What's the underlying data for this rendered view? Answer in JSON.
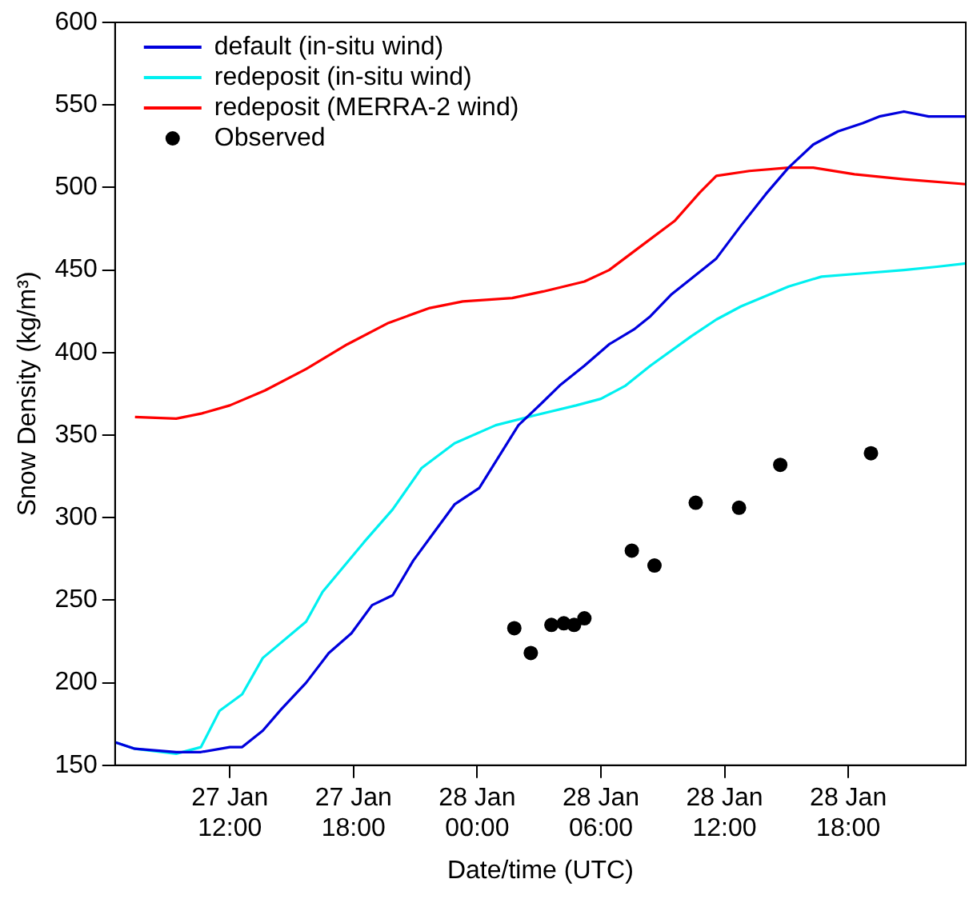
{
  "chart_data": {
    "type": "line",
    "xlabel": "Date/time (UTC)",
    "ylabel": "Snow Density (kg/m³)",
    "xlim": [
      "--01-27T06:26",
      "--01-28T23:42"
    ],
    "ylim": [
      150,
      600
    ],
    "xticks": [
      {
        "value": "--01-27T12:00",
        "label": "27 Jan 12:00"
      },
      {
        "value": "--01-27T18:00",
        "label": "27 Jan 18:00"
      },
      {
        "value": "--01-28T00:00",
        "label": "28 Jan 00:00"
      },
      {
        "value": "--01-28T06:00",
        "label": "28 Jan 06:00"
      },
      {
        "value": "--01-28T12:00",
        "label": "28 Jan 12:00"
      },
      {
        "value": "--01-28T18:00",
        "label": "28 Jan 18:00"
      }
    ],
    "yticks": [
      150,
      200,
      250,
      300,
      350,
      400,
      450,
      500,
      550,
      600
    ],
    "grid": false,
    "legend": "top left",
    "series": [
      {
        "name": "default (in-situ wind)",
        "type": "line",
        "color": "#0000dd",
        "marker": "none",
        "x": [
          "--01-27T06:26",
          "--01-27T07:24",
          "--01-27T09:24",
          "--01-27T10:36",
          "--01-27T12:00",
          "--01-27T12:36",
          "--01-27T13:36",
          "--01-27T14:30",
          "--01-27T15:42",
          "--01-27T16:48",
          "--01-27T17:54",
          "--01-27T18:54",
          "--01-27T19:54",
          "--01-27T20:54",
          "--01-27T21:54",
          "--01-27T22:54",
          "--01-28T00:06",
          "--01-28T01:00",
          "--01-28T02:00",
          "--01-28T03:06",
          "--01-28T04:00",
          "--01-28T05:12",
          "--01-28T06:24",
          "--01-28T07:36",
          "--01-28T08:24",
          "--01-28T09:24",
          "--01-28T10:24",
          "--01-28T11:36",
          "--01-28T12:48",
          "--01-28T14:00",
          "--01-28T15:06",
          "--01-28T16:18",
          "--01-28T17:30",
          "--01-28T18:42",
          "--01-28T19:30",
          "--01-28T20:42",
          "--01-28T21:54",
          "--01-28T23:06",
          "--01-28T23:42"
        ],
        "values": [
          164,
          160,
          158,
          158,
          161,
          161,
          171,
          184,
          200,
          218,
          230,
          247,
          253,
          274,
          291,
          308,
          318,
          336,
          356,
          369,
          380,
          392,
          405,
          414,
          422,
          435,
          445,
          457,
          477,
          496,
          512,
          526,
          534,
          539,
          543,
          546,
          543,
          543,
          543
        ]
      },
      {
        "name": "redeposit (in-situ wind)",
        "type": "line",
        "color": "#00f0f0",
        "marker": "none",
        "x": [
          "--01-27T06:26",
          "--01-27T07:24",
          "--01-27T09:24",
          "--01-27T10:36",
          "--01-27T11:30",
          "--01-27T12:36",
          "--01-27T13:36",
          "--01-27T15:42",
          "--01-27T16:30",
          "--01-27T18:30",
          "--01-27T19:54",
          "--01-27T21:18",
          "--01-27T22:54",
          "--01-28T00:54",
          "--01-28T02:48",
          "--01-28T04:48",
          "--01-28T06:00",
          "--01-28T07:12",
          "--01-28T08:24",
          "--01-28T10:24",
          "--01-28T11:36",
          "--01-28T12:48",
          "--01-28T15:06",
          "--01-28T16:42",
          "--01-28T18:42",
          "--01-28T20:42",
          "--01-28T22:18",
          "--01-28T23:42"
        ],
        "values": [
          164,
          160,
          157,
          161,
          183,
          193,
          215,
          237,
          255,
          285,
          305,
          330,
          345,
          356,
          362,
          368,
          372,
          380,
          392,
          410,
          420,
          428,
          440,
          446,
          448,
          450,
          452,
          454
        ]
      },
      {
        "name": "redeposit (MERRA-2 wind)",
        "type": "line",
        "color": "#ff0000",
        "marker": "none",
        "x": [
          "--01-27T07:24",
          "--01-27T09:24",
          "--01-27T10:36",
          "--01-27T12:00",
          "--01-27T13:42",
          "--01-27T15:42",
          "--01-27T17:42",
          "--01-27T19:42",
          "--01-27T21:42",
          "--01-27T23:18",
          "--01-28T01:42",
          "--01-28T03:12",
          "--01-28T05:12",
          "--01-28T06:24",
          "--01-28T08:00",
          "--01-28T09:36",
          "--01-28T10:48",
          "--01-28T11:36",
          "--01-28T13:12",
          "--01-28T15:06",
          "--01-28T16:18",
          "--01-28T18:18",
          "--01-28T20:42",
          "--01-28T23:42"
        ],
        "values": [
          361,
          360,
          363,
          368,
          377,
          390,
          405,
          418,
          427,
          431,
          433,
          437,
          443,
          450,
          465,
          480,
          497,
          507,
          510,
          512,
          512,
          508,
          505,
          502
        ]
      },
      {
        "name": "Observed",
        "type": "scatter",
        "color": "#000000",
        "marker": "circle",
        "x": [
          "--01-28T01:48",
          "--01-28T02:36",
          "--01-28T03:36",
          "--01-28T04:12",
          "--01-28T04:42",
          "--01-28T05:12",
          "--01-28T07:30",
          "--01-28T08:36",
          "--01-28T10:36",
          "--01-28T12:42",
          "--01-28T14:42",
          "--01-28T19:06"
        ],
        "values": [
          233,
          218,
          235,
          236,
          235,
          239,
          280,
          271,
          309,
          306,
          332,
          339
        ]
      }
    ]
  }
}
